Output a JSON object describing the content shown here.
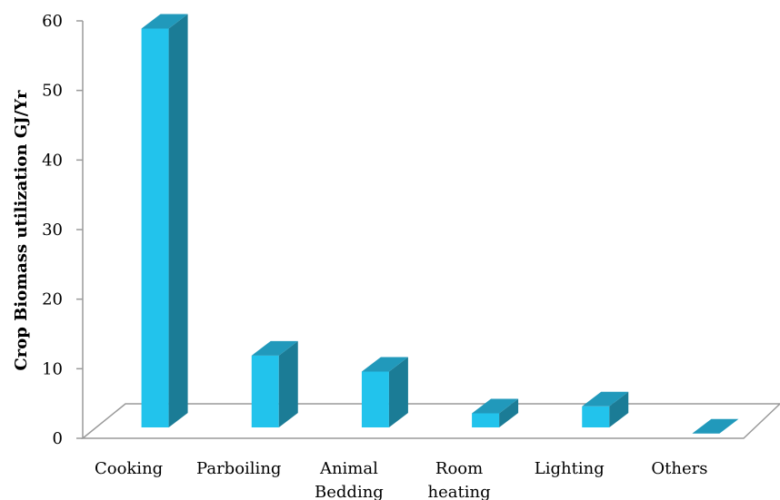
{
  "chart_data": {
    "type": "bar",
    "title": "",
    "xlabel": "",
    "ylabel": "Crop Biomass utilization GJ/Yr",
    "ylim": [
      0,
      60
    ],
    "yticks": [
      "0",
      "10",
      "20",
      "30",
      "40",
      "50",
      "60"
    ],
    "categories": [
      [
        "Cooking"
      ],
      [
        "Parboiling"
      ],
      [
        "Animal",
        "Bedding"
      ],
      [
        "Room",
        "heating"
      ],
      [
        "Lighting"
      ],
      [
        "Others"
      ]
    ],
    "values": [
      58.5,
      11.5,
      9.2,
      3.2,
      4.2,
      0.3
    ],
    "colors": {
      "front": "#22c3ec",
      "side": "#1b7c96",
      "top": "#2199bb"
    },
    "grid": false,
    "legend": "none"
  }
}
